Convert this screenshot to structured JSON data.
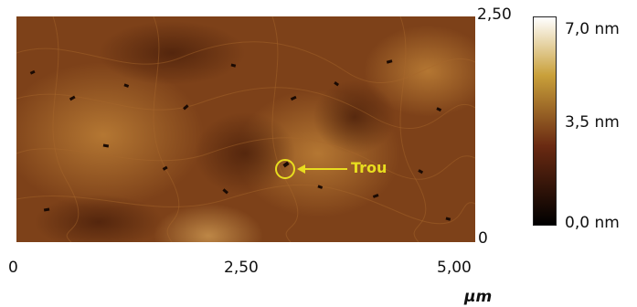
{
  "image": {
    "annotation": "Trou",
    "annotation_color": "#e8dd1f",
    "y_ticks": [
      "2,50",
      "0"
    ],
    "x_ticks": [
      "0",
      "2,50",
      "5,00"
    ],
    "x_unit": "µm"
  },
  "colorbar": {
    "labels": [
      "7,0 nm",
      "3,5 nm",
      "0,0 nm"
    ],
    "colors": [
      "#ffffff",
      "#c9a03a",
      "#6a2a12",
      "#000000"
    ]
  }
}
